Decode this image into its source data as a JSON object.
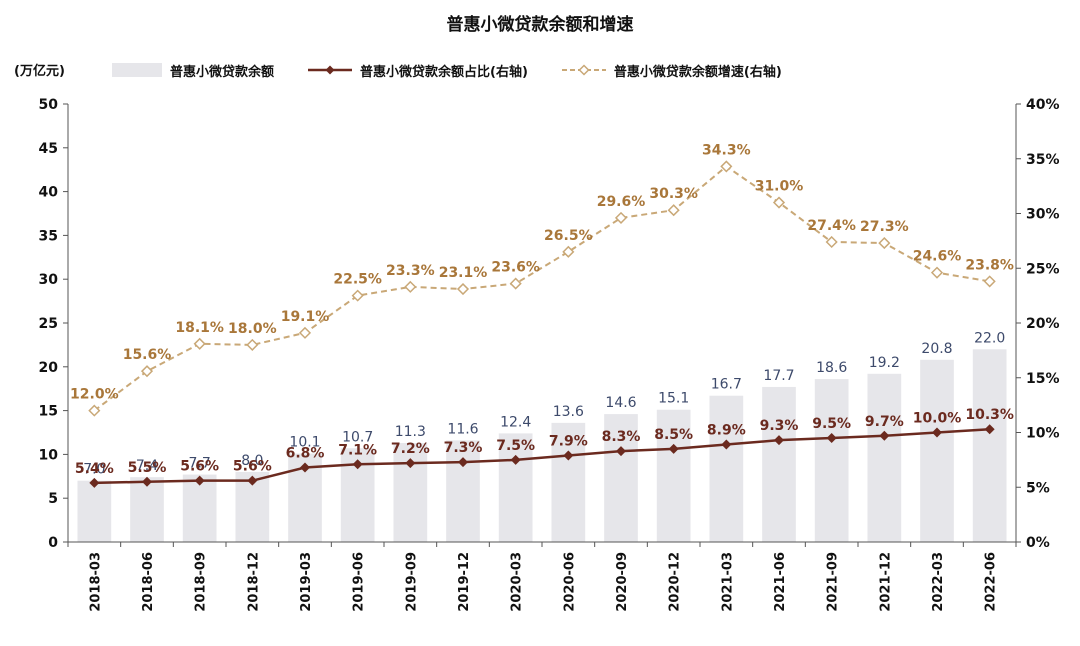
{
  "chart_data": {
    "type": "bar",
    "title": "普惠小微贷款余额和增速",
    "y_left_unit": "(万亿元)",
    "ylim_left": [
      0,
      50
    ],
    "yticks_left": [
      0,
      5,
      10,
      15,
      20,
      25,
      30,
      35,
      40,
      45,
      50
    ],
    "ylim_right": [
      0,
      40
    ],
    "yticks_right": [
      "0%",
      "5%",
      "10%",
      "15%",
      "20%",
      "25%",
      "30%",
      "35%",
      "40%"
    ],
    "categories": [
      "2018-03",
      "2018-06",
      "2018-09",
      "2018-12",
      "2019-03",
      "2019-06",
      "2019-09",
      "2019-12",
      "2020-03",
      "2020-06",
      "2020-09",
      "2020-12",
      "2021-03",
      "2021-06",
      "2021-09",
      "2021-12",
      "2022-03",
      "2022-06"
    ],
    "series": [
      {
        "name": "普惠小微贷款余额",
        "type": "bar",
        "axis": "left",
        "color": "#e6e6ea",
        "label_color": "#3d4a6b",
        "values": [
          7.0,
          7.4,
          7.7,
          8.0,
          10.1,
          10.7,
          11.3,
          11.6,
          12.4,
          13.6,
          14.6,
          15.1,
          16.7,
          17.7,
          18.6,
          19.2,
          20.8,
          22.0
        ],
        "labels": [
          "7.0",
          "7.4",
          "7.7",
          "8.0",
          "10.1",
          "10.7",
          "11.3",
          "11.6",
          "12.4",
          "13.6",
          "14.6",
          "15.1",
          "16.7",
          "17.7",
          "18.6",
          "19.2",
          "20.8",
          "22.0"
        ]
      },
      {
        "name": "普惠小微贷款余额占比(右轴)",
        "type": "line",
        "axis": "right",
        "color": "#6b2a1f",
        "marker": "filled-diamond",
        "values": [
          5.4,
          5.5,
          5.6,
          5.6,
          6.8,
          7.1,
          7.2,
          7.3,
          7.5,
          7.9,
          8.3,
          8.5,
          8.9,
          9.3,
          9.5,
          9.7,
          10.0,
          10.3
        ],
        "labels": [
          "5.4%",
          "5.5%",
          "5.6%",
          "5.6%",
          "6.8%",
          "7.1%",
          "7.2%",
          "7.3%",
          "7.5%",
          "7.9%",
          "8.3%",
          "8.5%",
          "8.9%",
          "9.3%",
          "9.5%",
          "9.7%",
          "10.0%",
          "10.3%"
        ]
      },
      {
        "name": "普惠小微贷款余额增速(右轴)",
        "type": "line",
        "axis": "right",
        "color": "#c9a877",
        "label_color": "#a9773a",
        "marker": "hollow-diamond",
        "dashed": true,
        "values": [
          12.0,
          15.6,
          18.1,
          18.0,
          19.1,
          22.5,
          23.3,
          23.1,
          23.6,
          26.5,
          29.6,
          30.3,
          34.3,
          31.0,
          27.4,
          27.3,
          24.6,
          23.8
        ],
        "labels": [
          "12.0%",
          "15.6%",
          "18.1%",
          "18.0%",
          "19.1%",
          "22.5%",
          "23.3%",
          "23.1%",
          "23.6%",
          "26.5%",
          "29.6%",
          "30.3%",
          "34.3%",
          "31.0%",
          "27.4%",
          "27.3%",
          "24.6%",
          "23.8%"
        ]
      }
    ],
    "legend_position": "top",
    "grid": false
  }
}
